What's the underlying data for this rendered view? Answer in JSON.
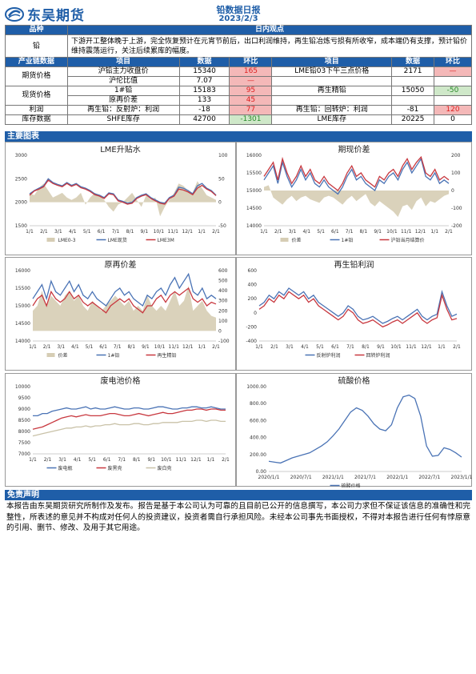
{
  "header": {
    "company": "东吴期货",
    "title": "铅数据日报",
    "date": "2023/2/3"
  },
  "view": {
    "col_variety": "品种",
    "col_view": "日内观点",
    "variety": "铅",
    "text": "下游开工整体晚于上游，完全恢复预计在元宵节前后，出口利润维持，再生铅冶炼亏损有所收窄，成本端仍有支撑，预计铅价维持震荡运行，关注后续累库的幅度。"
  },
  "data_table": {
    "headers": [
      "产业链数据",
      "项目",
      "数据",
      "环比",
      "项目",
      "数据",
      "环比"
    ],
    "groups": [
      {
        "label": "期货价格",
        "rows": [
          {
            "item": "沪铅主力收盘价",
            "value": "15340",
            "chg": "165",
            "chg_class": "red",
            "item2": "LME铅03下午三点价格",
            "value2": "2171",
            "chg2": "—",
            "chg2_class": "red"
          },
          {
            "item": "沪伦比值",
            "value": "7.07",
            "chg": "—",
            "chg_class": "red",
            "item2": "",
            "value2": "",
            "chg2": "",
            "chg2_class": ""
          }
        ]
      },
      {
        "label": "现货价格",
        "rows": [
          {
            "item": "1#铅",
            "value": "15183",
            "chg": "95",
            "chg_class": "red",
            "item2": "再生精铅",
            "value2": "15050",
            "chg2": "-50",
            "chg2_class": "green"
          },
          {
            "item": "原再价差",
            "value": "133",
            "chg": "45",
            "chg_class": "red",
            "item2": "",
            "value2": "",
            "chg2": "",
            "chg2_class": ""
          }
        ]
      },
      {
        "label": "利润",
        "rows": [
          {
            "item": "再生铅：反射炉：利润",
            "value": "-18",
            "chg": "77",
            "chg_class": "red",
            "item2": "再生铅：回转炉：利润",
            "value2": "-81",
            "chg2": "120",
            "chg2_class": "red"
          }
        ]
      },
      {
        "label": "库存数据",
        "rows": [
          {
            "item": "SHFE库存",
            "value": "42700",
            "chg": "-1301",
            "chg_class": "green",
            "item2": "LME库存",
            "value2": "20225",
            "chg2": "0",
            "chg2_class": ""
          }
        ]
      }
    ]
  },
  "charts_section": "主要图表",
  "disclaimer_section": "免责声明",
  "disclaimer_text": "本报告由东吴期货研究所制作及发布。报告是基于本公司认为可靠的且目前已公开的信息撰写，本公司力求但不保证该信息的准确性和完整性，所表述的意见并不构成对任何人的投资建议，投资者需自行承担风险。未经本公司事先书面授权，不得对本报告进行任何有悖原意的引用、删节、修改、及用于其它用途。",
  "colors": {
    "brand": "#1f5ea8",
    "series_blue": "#4a73b5",
    "series_red": "#c8383f",
    "series_tan": "#d6cdb4"
  },
  "chart_data": [
    {
      "type": "line",
      "title": "LME升贴水",
      "xticks": [
        "1/1",
        "2/1",
        "3/1",
        "4/1",
        "5/1",
        "6/1",
        "7/1",
        "8/1",
        "9/1",
        "10/1",
        "11/1",
        "12/1",
        "1/1",
        "2/1"
      ],
      "yleft": [
        1500,
        2000,
        2500,
        3000
      ],
      "yright": [
        -50,
        0,
        50,
        100
      ],
      "series": [
        {
          "name": "LME0-3",
          "kind": "area"
        },
        {
          "name": "LME现货",
          "kind": "line"
        },
        {
          "name": "LME3M",
          "kind": "line"
        }
      ],
      "lines": [
        [
          2180,
          2250,
          2300,
          2350,
          2500,
          2420,
          2380,
          2350,
          2420,
          2360,
          2400,
          2330,
          2300,
          2250,
          2180,
          2150,
          2100,
          2200,
          2180,
          2050,
          2020,
          1980,
          2000,
          2100,
          2150,
          2180,
          2100,
          2050,
          2000,
          1980,
          2100,
          2150,
          2320,
          2300,
          2250,
          2180,
          2350,
          2400,
          2300,
          2250,
          2150
        ],
        [
          2150,
          2240,
          2280,
          2330,
          2470,
          2400,
          2360,
          2330,
          2400,
          2340,
          2380,
          2310,
          2280,
          2230,
          2160,
          2130,
          2080,
          2180,
          2160,
          2030,
          2000,
          1960,
          1980,
          2080,
          2130,
          2160,
          2080,
          2030,
          1980,
          1960,
          2080,
          2130,
          2280,
          2260,
          2220,
          2160,
          2300,
          2360,
          2280,
          2230,
          2140
        ]
      ],
      "area": [
        20,
        15,
        30,
        40,
        25,
        10,
        15,
        20,
        10,
        5,
        10,
        20,
        -5,
        10,
        20,
        15,
        5,
        -10,
        -20,
        -5,
        0,
        10,
        20,
        5,
        -10,
        15,
        5,
        10,
        -30,
        -10,
        5,
        20,
        40,
        35,
        25,
        20,
        45,
        30,
        15,
        10,
        5
      ],
      "left_range": [
        1500,
        3000
      ],
      "right_range": [
        -50,
        100
      ]
    },
    {
      "type": "line",
      "title": "期现价差",
      "xticks": [
        "1/1",
        "2/1",
        "3/1",
        "4/1",
        "5/1",
        "6/1",
        "7/1",
        "8/1",
        "9/1",
        "10/1",
        "11/1",
        "12/1",
        "1/1",
        "2/1"
      ],
      "yleft": [
        14000,
        14500,
        15000,
        15500,
        16000
      ],
      "yright": [
        -200,
        -100,
        0,
        100,
        200
      ],
      "series": [
        {
          "name": "价差",
          "kind": "area"
        },
        {
          "name": "1#铅",
          "kind": "line"
        },
        {
          "name": "沪铅当月结算价",
          "kind": "line"
        }
      ],
      "lines": [
        [
          15300,
          15500,
          15700,
          15200,
          15800,
          15400,
          15100,
          15300,
          15600,
          15300,
          15500,
          15200,
          15100,
          15300,
          15100,
          15000,
          14900,
          15100,
          15400,
          15600,
          15300,
          15400,
          15200,
          15100,
          15000,
          15300,
          15200,
          15400,
          15500,
          15300,
          15600,
          15800,
          15500,
          15700,
          15900,
          15400,
          15300,
          15500,
          15200,
          15300,
          15200
        ],
        [
          15400,
          15600,
          15800,
          15300,
          15900,
          15500,
          15200,
          15400,
          15700,
          15400,
          15600,
          15300,
          15200,
          15400,
          15200,
          15100,
          15000,
          15200,
          15500,
          15700,
          15400,
          15500,
          15300,
          15200,
          15100,
          15400,
          15300,
          15500,
          15600,
          15400,
          15700,
          15900,
          15600,
          15800,
          15950,
          15500,
          15400,
          15600,
          15300,
          15400,
          15300
        ]
      ],
      "area": [
        20,
        30,
        -40,
        -60,
        -80,
        -50,
        -30,
        -60,
        -40,
        -30,
        -50,
        -60,
        -70,
        -40,
        -30,
        -40,
        -60,
        -80,
        -50,
        -30,
        -60,
        -40,
        -20,
        -70,
        -90,
        -60,
        -80,
        -100,
        -120,
        -150,
        -90,
        -80,
        -110,
        -60,
        -40,
        -90,
        -60,
        -70,
        -50,
        -30,
        -20
      ],
      "left_range": [
        14000,
        16000
      ],
      "right_range": [
        -200,
        200
      ]
    },
    {
      "type": "line",
      "title": "原再价差",
      "xticks": [
        "1/1",
        "2/1",
        "3/1",
        "4/1",
        "5/1",
        "6/1",
        "7/1",
        "8/1",
        "9/1",
        "10/1",
        "11/1",
        "12/1",
        "1/1",
        "2/1"
      ],
      "yleft": [
        14000,
        14500,
        15000,
        15500,
        16000
      ],
      "yright": [
        -100,
        0,
        100,
        200,
        300,
        400,
        500,
        600
      ],
      "series": [
        {
          "name": "价差",
          "kind": "area"
        },
        {
          "name": "1#铅",
          "kind": "line"
        },
        {
          "name": "再生精铅",
          "kind": "line"
        }
      ],
      "lines": [
        [
          15200,
          15400,
          15600,
          15200,
          15700,
          15400,
          15300,
          15500,
          15700,
          15400,
          15600,
          15300,
          15200,
          15400,
          15200,
          15100,
          15000,
          15200,
          15400,
          15500,
          15300,
          15400,
          15200,
          15100,
          15000,
          15300,
          15200,
          15400,
          15500,
          15300,
          15600,
          15800,
          15500,
          15700,
          15900,
          15400,
          15300,
          15500,
          15200,
          15300,
          15200
        ],
        [
          15000,
          15200,
          15300,
          15000,
          15400,
          15200,
          15100,
          15200,
          15400,
          15200,
          15300,
          15100,
          15000,
          15100,
          15000,
          14900,
          14800,
          15000,
          15100,
          15200,
          15100,
          15200,
          15000,
          14900,
          14800,
          15000,
          15000,
          15200,
          15300,
          15100,
          15300,
          15400,
          15300,
          15400,
          15500,
          15200,
          15100,
          15200,
          15000,
          15100,
          15050
        ]
      ],
      "area": [
        200,
        250,
        400,
        250,
        350,
        300,
        250,
        350,
        400,
        300,
        350,
        250,
        200,
        300,
        250,
        200,
        250,
        300,
        350,
        300,
        250,
        300,
        200,
        250,
        200,
        350,
        250,
        200,
        250,
        200,
        300,
        400,
        250,
        300,
        450,
        200,
        250,
        300,
        200,
        150,
        133
      ],
      "left_range": [
        14000,
        16000
      ],
      "right_range": [
        -100,
        600
      ]
    },
    {
      "type": "line",
      "title": "再生铅利润",
      "xticks": [
        "1/1",
        "2/1",
        "3/1",
        "4/1",
        "5/1",
        "6/1",
        "7/1",
        "8/1",
        "9/1",
        "10/1",
        "11/1",
        "12/1",
        "1/1",
        "2/1"
      ],
      "yleft": [
        -400,
        -200,
        0,
        200,
        400,
        600
      ],
      "series": [
        {
          "name": "反射炉利润",
          "kind": "line"
        },
        {
          "name": "回转炉利润",
          "kind": "line"
        }
      ],
      "lines": [
        [
          100,
          150,
          250,
          200,
          300,
          250,
          350,
          300,
          250,
          300,
          200,
          250,
          150,
          100,
          50,
          0,
          -50,
          0,
          100,
          50,
          -50,
          -100,
          -80,
          -50,
          -100,
          -150,
          -120,
          -80,
          -50,
          -100,
          -50,
          0,
          50,
          -50,
          -100,
          -50,
          -20,
          300,
          100,
          -50,
          -18
        ],
        [
          50,
          100,
          200,
          150,
          250,
          200,
          300,
          250,
          200,
          250,
          150,
          200,
          100,
          50,
          0,
          -50,
          -100,
          -50,
          50,
          0,
          -100,
          -150,
          -130,
          -100,
          -150,
          -200,
          -170,
          -130,
          -100,
          -150,
          -100,
          -50,
          0,
          -100,
          -150,
          -100,
          -70,
          250,
          50,
          -100,
          -81
        ]
      ],
      "left_range": [
        -400,
        600
      ]
    },
    {
      "type": "line",
      "title": "废电池价格",
      "xticks": [
        "1/1",
        "2/1",
        "3/1",
        "4/1",
        "5/1",
        "6/1",
        "7/1",
        "8/1",
        "9/1",
        "10/1",
        "11/1",
        "12/1",
        "1/1",
        "2/1"
      ],
      "yleft": [
        7000,
        7500,
        8000,
        8500,
        9000,
        9500,
        10000
      ],
      "series": [
        {
          "name": "废电瓶",
          "kind": "line"
        },
        {
          "name": "废黑壳",
          "kind": "line"
        },
        {
          "name": "废白壳",
          "kind": "line"
        }
      ],
      "lines": [
        [
          8700,
          8700,
          8800,
          8800,
          8900,
          8950,
          9000,
          9050,
          9000,
          9000,
          9050,
          9100,
          9000,
          9050,
          9000,
          9000,
          9050,
          9100,
          9050,
          9000,
          9000,
          9050,
          9050,
          9000,
          9000,
          9050,
          9100,
          9100,
          9050,
          9000,
          9000,
          9050,
          9050,
          9100,
          9100,
          9050,
          9050,
          9100,
          9050,
          9000,
          9000
        ],
        [
          8100,
          8150,
          8200,
          8300,
          8400,
          8500,
          8600,
          8650,
          8700,
          8650,
          8700,
          8750,
          8700,
          8700,
          8700,
          8750,
          8800,
          8800,
          8750,
          8700,
          8700,
          8750,
          8800,
          8750,
          8700,
          8750,
          8800,
          8850,
          8800,
          8800,
          8850,
          8900,
          8950,
          8950,
          9000,
          9000,
          8950,
          9000,
          9000,
          8950,
          8950
        ],
        [
          7800,
          7850,
          7900,
          7950,
          8000,
          8050,
          8100,
          8150,
          8150,
          8200,
          8200,
          8250,
          8200,
          8250,
          8250,
          8300,
          8300,
          8350,
          8300,
          8300,
          8300,
          8350,
          8350,
          8300,
          8300,
          8350,
          8350,
          8400,
          8400,
          8400,
          8400,
          8450,
          8450,
          8450,
          8500,
          8500,
          8450,
          8500,
          8500,
          8450,
          8450
        ]
      ],
      "left_range": [
        7000,
        10000
      ]
    },
    {
      "type": "line",
      "title": "硫酸价格",
      "xticks": [
        "2020/1/1",
        "2020/7/1",
        "2021/1/1",
        "2021/7/1",
        "2022/1/1",
        "2022/7/1",
        "2023/1/1"
      ],
      "yleft": [
        0,
        200,
        400,
        600,
        800,
        1000
      ],
      "yleft_labels": [
        "0.00",
        "200.00",
        "400.00",
        "600.00",
        "800.00",
        "1000.00"
      ],
      "series": [
        {
          "name": "硫酸价格",
          "kind": "line"
        }
      ],
      "lines": [
        [
          120,
          110,
          100,
          130,
          160,
          180,
          200,
          220,
          260,
          300,
          350,
          420,
          500,
          600,
          700,
          750,
          720,
          650,
          560,
          500,
          480,
          550,
          750,
          880,
          900,
          860,
          650,
          300,
          180,
          190,
          280,
          260,
          220,
          170
        ]
      ],
      "left_range": [
        0,
        1000
      ]
    }
  ]
}
